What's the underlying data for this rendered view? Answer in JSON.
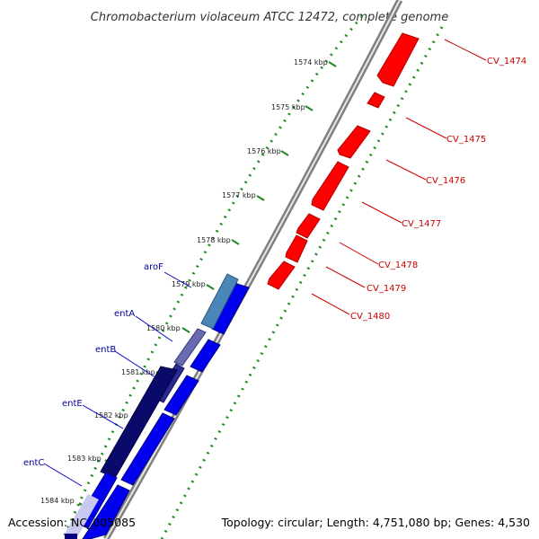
{
  "title": "Chromobacterium violaceum ATCC 12472, complete genome",
  "ticks": [
    "1574 kbp",
    "1575 kbp",
    "1576 kbp",
    "1577 kbp",
    "1578 kbp",
    "1579 kbp",
    "1580 kbp",
    "1581 kbp",
    "1582 kbp",
    "1583 kbp",
    "1584 kbp"
  ],
  "forward_genes": [
    {
      "label": "aroF",
      "color": "#4a86b8"
    },
    {
      "label": "entA",
      "color": "#6a6ab0"
    },
    {
      "label": "entB",
      "color": "#2a2a90"
    },
    {
      "label": "entE",
      "color": "#0a0a6a"
    },
    {
      "label": "entC",
      "color": "#c8c8f0"
    }
  ],
  "reverse_genes": [
    {
      "label": "CV_1474",
      "color": "#ff0000"
    },
    {
      "label": "CV_1475",
      "color": "#ff0000"
    },
    {
      "label": "CV_1476",
      "color": "#ff0000"
    },
    {
      "label": "CV_1477",
      "color": "#ff0000"
    },
    {
      "label": "CV_1478",
      "color": "#ff0000"
    },
    {
      "label": "CV_1479",
      "color": "#ff0000"
    },
    {
      "label": "CV_1480",
      "color": "#ff0000"
    }
  ],
  "cds_track_colors": {
    "forward": "#0000ee",
    "reverse": "#ff0000",
    "tick_marks": "#228822",
    "backbone": "#888888"
  },
  "footer": {
    "accession": "Accession: NC_005085",
    "topology": "Topology: circular; Length: 4,751,080 bp; Genes: 4,530"
  }
}
